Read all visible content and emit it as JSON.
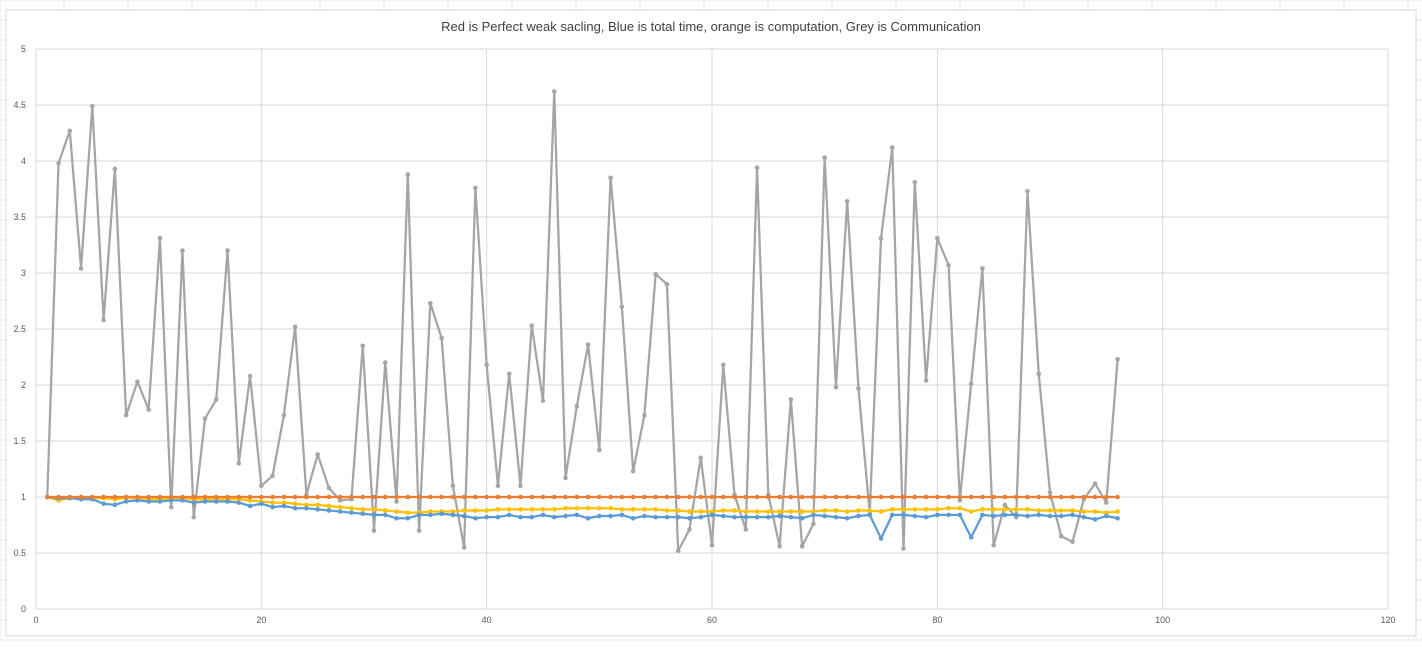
{
  "chart_data": {
    "type": "scatter",
    "title": "Red is Perfect weak sacling, Blue is total time, orange is computation, Grey is Communication",
    "xlim": [
      0,
      120
    ],
    "ylim": [
      0,
      5
    ],
    "x_ticks": [
      0,
      20,
      40,
      60,
      80,
      100,
      120
    ],
    "y_ticks": [
      0,
      0.5,
      1,
      1.5,
      2,
      2.5,
      3,
      3.5,
      4,
      4.5,
      5
    ],
    "x_tick_labels": [
      "0",
      "20",
      "40",
      "60",
      "80",
      "100",
      "120"
    ],
    "y_tick_labels": [
      "0",
      "0.5",
      "1",
      "1.5",
      "2",
      "2.5",
      "3",
      "3.5",
      "4",
      "4.5",
      "5"
    ],
    "grid": true,
    "legend": "none",
    "series": [
      {
        "color": "#a5a5a5",
        "x": [
          1,
          2,
          3,
          4,
          5,
          6,
          7,
          8,
          9,
          10,
          11,
          12,
          13,
          14,
          15,
          16,
          17,
          18,
          19,
          20,
          21,
          22,
          23,
          24,
          25,
          26,
          27,
          28,
          29,
          30,
          31,
          32,
          33,
          34,
          35,
          36,
          37,
          38,
          39,
          40,
          41,
          42,
          43,
          44,
          45,
          46,
          47,
          48,
          49,
          50,
          51,
          52,
          53,
          54,
          55,
          56,
          57,
          58,
          59,
          60,
          61,
          62,
          63,
          64,
          65,
          66,
          67,
          68,
          69,
          70,
          71,
          72,
          73,
          74,
          75,
          76,
          77,
          78,
          79,
          80,
          81,
          82,
          83,
          84,
          85,
          86,
          87,
          88,
          89,
          90,
          91,
          92,
          93,
          94,
          95,
          96
        ],
        "y": [
          1.0,
          3.98,
          4.27,
          3.04,
          4.49,
          2.58,
          3.93,
          1.73,
          2.03,
          1.78,
          3.31,
          0.91,
          3.2,
          0.82,
          1.7,
          1.87,
          3.2,
          1.3,
          2.08,
          1.1,
          1.19,
          1.73,
          2.52,
          1.02,
          1.38,
          1.08,
          0.97,
          0.98,
          2.35,
          0.7,
          2.2,
          0.96,
          3.88,
          0.7,
          2.73,
          2.42,
          1.1,
          0.55,
          3.76,
          2.18,
          1.1,
          2.1,
          1.1,
          2.53,
          1.86,
          4.62,
          1.17,
          1.81,
          2.36,
          1.42,
          3.85,
          2.7,
          1.23,
          1.73,
          2.99,
          2.9,
          0.52,
          0.71,
          1.35,
          0.57,
          2.18,
          1.02,
          0.71,
          3.94,
          1.02,
          0.56,
          1.87,
          0.56,
          0.76,
          4.03,
          1.98,
          3.64,
          1.97,
          0.85,
          3.31,
          4.12,
          0.54,
          3.81,
          2.04,
          3.31,
          3.07,
          0.97,
          2.01,
          3.04,
          0.57,
          0.93,
          0.82,
          3.73,
          2.1,
          1.04,
          0.65,
          0.6,
          0.98,
          1.12,
          0.95,
          2.23
        ]
      },
      {
        "color": "#ffc000",
        "x": [
          1,
          2,
          3,
          4,
          5,
          6,
          7,
          8,
          9,
          10,
          11,
          12,
          13,
          14,
          15,
          16,
          17,
          18,
          19,
          20,
          21,
          22,
          23,
          24,
          25,
          26,
          27,
          28,
          29,
          30,
          31,
          32,
          33,
          34,
          35,
          36,
          37,
          38,
          39,
          40,
          41,
          42,
          43,
          44,
          45,
          46,
          47,
          48,
          49,
          50,
          51,
          52,
          53,
          54,
          55,
          56,
          57,
          58,
          59,
          60,
          61,
          62,
          63,
          64,
          65,
          66,
          67,
          68,
          69,
          70,
          71,
          72,
          73,
          74,
          75,
          76,
          77,
          78,
          79,
          80,
          81,
          82,
          83,
          84,
          85,
          86,
          87,
          88,
          89,
          90,
          91,
          92,
          93,
          94,
          95,
          96
        ],
        "y": [
          1.0,
          0.97,
          0.99,
          0.99,
          0.99,
          0.99,
          0.98,
          0.99,
          0.99,
          0.98,
          0.98,
          0.99,
          0.99,
          0.98,
          0.98,
          0.98,
          0.98,
          0.98,
          0.97,
          0.96,
          0.95,
          0.95,
          0.94,
          0.93,
          0.93,
          0.92,
          0.91,
          0.9,
          0.89,
          0.89,
          0.88,
          0.87,
          0.86,
          0.86,
          0.87,
          0.87,
          0.87,
          0.88,
          0.88,
          0.88,
          0.89,
          0.89,
          0.89,
          0.89,
          0.89,
          0.89,
          0.9,
          0.9,
          0.9,
          0.9,
          0.9,
          0.89,
          0.89,
          0.89,
          0.89,
          0.88,
          0.88,
          0.87,
          0.87,
          0.87,
          0.88,
          0.88,
          0.87,
          0.87,
          0.87,
          0.87,
          0.87,
          0.87,
          0.87,
          0.88,
          0.88,
          0.87,
          0.88,
          0.88,
          0.87,
          0.89,
          0.89,
          0.89,
          0.89,
          0.89,
          0.9,
          0.9,
          0.87,
          0.89,
          0.89,
          0.89,
          0.89,
          0.89,
          0.88,
          0.88,
          0.88,
          0.88,
          0.87,
          0.87,
          0.86,
          0.87
        ]
      },
      {
        "color": "#5b9bd5",
        "x": [
          1,
          2,
          3,
          4,
          5,
          6,
          7,
          8,
          9,
          10,
          11,
          12,
          13,
          14,
          15,
          16,
          17,
          18,
          19,
          20,
          21,
          22,
          23,
          24,
          25,
          26,
          27,
          28,
          29,
          30,
          31,
          32,
          33,
          34,
          35,
          36,
          37,
          38,
          39,
          40,
          41,
          42,
          43,
          44,
          45,
          46,
          47,
          48,
          49,
          50,
          51,
          52,
          53,
          54,
          55,
          56,
          57,
          58,
          59,
          60,
          61,
          62,
          63,
          64,
          65,
          66,
          67,
          68,
          69,
          70,
          71,
          72,
          73,
          74,
          75,
          76,
          77,
          78,
          79,
          80,
          81,
          82,
          83,
          84,
          85,
          86,
          87,
          88,
          89,
          90,
          91,
          92,
          93,
          94,
          95,
          96
        ],
        "y": [
          1.0,
          0.99,
          0.99,
          0.98,
          0.98,
          0.94,
          0.93,
          0.96,
          0.97,
          0.96,
          0.96,
          0.97,
          0.97,
          0.95,
          0.96,
          0.96,
          0.96,
          0.95,
          0.92,
          0.94,
          0.91,
          0.92,
          0.9,
          0.9,
          0.89,
          0.88,
          0.87,
          0.86,
          0.85,
          0.84,
          0.84,
          0.81,
          0.81,
          0.84,
          0.84,
          0.85,
          0.84,
          0.83,
          0.81,
          0.82,
          0.82,
          0.84,
          0.82,
          0.82,
          0.84,
          0.82,
          0.83,
          0.84,
          0.81,
          0.83,
          0.83,
          0.84,
          0.81,
          0.83,
          0.82,
          0.82,
          0.82,
          0.81,
          0.82,
          0.84,
          0.83,
          0.82,
          0.82,
          0.82,
          0.82,
          0.83,
          0.82,
          0.81,
          0.84,
          0.83,
          0.82,
          0.81,
          0.83,
          0.84,
          0.63,
          0.84,
          0.84,
          0.83,
          0.82,
          0.84,
          0.84,
          0.84,
          0.64,
          0.84,
          0.83,
          0.84,
          0.84,
          0.83,
          0.84,
          0.83,
          0.83,
          0.84,
          0.82,
          0.8,
          0.83,
          0.81
        ]
      },
      {
        "color": "#ed7d31",
        "x": [
          1,
          2,
          3,
          4,
          5,
          6,
          7,
          8,
          9,
          10,
          11,
          12,
          13,
          14,
          15,
          16,
          17,
          18,
          19,
          20,
          21,
          22,
          23,
          24,
          25,
          26,
          27,
          28,
          29,
          30,
          31,
          32,
          33,
          34,
          35,
          36,
          37,
          38,
          39,
          40,
          41,
          42,
          43,
          44,
          45,
          46,
          47,
          48,
          49,
          50,
          51,
          52,
          53,
          54,
          55,
          56,
          57,
          58,
          59,
          60,
          61,
          62,
          63,
          64,
          65,
          66,
          67,
          68,
          69,
          70,
          71,
          72,
          73,
          74,
          75,
          76,
          77,
          78,
          79,
          80,
          81,
          82,
          83,
          84,
          85,
          86,
          87,
          88,
          89,
          90,
          91,
          92,
          93,
          94,
          95,
          96
        ],
        "y": [
          1,
          1,
          1,
          1,
          1,
          1,
          1,
          1,
          1,
          1,
          1,
          1,
          1,
          1,
          1,
          1,
          1,
          1,
          1,
          1,
          1,
          1,
          1,
          1,
          1,
          1,
          1,
          1,
          1,
          1,
          1,
          1,
          1,
          1,
          1,
          1,
          1,
          1,
          1,
          1,
          1,
          1,
          1,
          1,
          1,
          1,
          1,
          1,
          1,
          1,
          1,
          1,
          1,
          1,
          1,
          1,
          1,
          1,
          1,
          1,
          1,
          1,
          1,
          1,
          1,
          1,
          1,
          1,
          1,
          1,
          1,
          1,
          1,
          1,
          1,
          1,
          1,
          1,
          1,
          1,
          1,
          1,
          1,
          1,
          1,
          1,
          1,
          1,
          1,
          1,
          1,
          1,
          1,
          1,
          1,
          1
        ]
      }
    ]
  }
}
